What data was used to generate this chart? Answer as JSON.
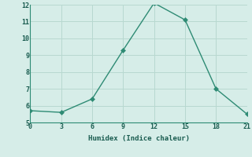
{
  "x": [
    0,
    3,
    6,
    9,
    12,
    15,
    18,
    21
  ],
  "y": [
    5.7,
    5.6,
    6.4,
    9.3,
    12.1,
    11.1,
    7.0,
    5.5
  ],
  "xlabel": "Humidex (Indice chaleur)",
  "xlim": [
    0,
    21
  ],
  "ylim": [
    5,
    12
  ],
  "yticks": [
    5,
    6,
    7,
    8,
    9,
    10,
    11,
    12
  ],
  "xticks": [
    0,
    3,
    6,
    9,
    12,
    15,
    18,
    21
  ],
  "line_color": "#2e8b74",
  "bg_color": "#d6ede8",
  "grid_color": "#b8d8d0",
  "markersize": 3,
  "linewidth": 1.0
}
